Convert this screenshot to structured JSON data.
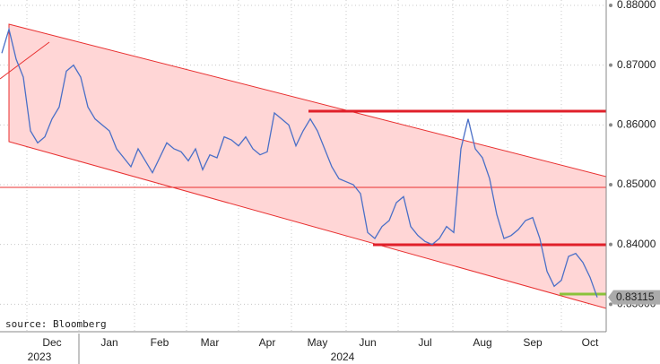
{
  "chart_data": {
    "type": "line",
    "source": "source: Bloomberg",
    "years": [
      "2023",
      "2024"
    ],
    "color": "#4a6fc7",
    "categories": [
      null,
      null,
      null,
      null,
      null,
      null,
      null,
      "Dec",
      null,
      null,
      null,
      null,
      null,
      null,
      null,
      "Jan",
      null,
      null,
      null,
      null,
      null,
      null,
      "Feb",
      null,
      null,
      null,
      null,
      null,
      null,
      "Mar",
      null,
      null,
      null,
      null,
      null,
      null,
      null,
      "Apr",
      null,
      null,
      null,
      null,
      null,
      null,
      "May",
      null,
      null,
      null,
      null,
      null,
      null,
      "Jun",
      null,
      null,
      null,
      null,
      null,
      null,
      null,
      "Jul",
      null,
      null,
      null,
      null,
      null,
      null,
      null,
      "Aug",
      null,
      null,
      null,
      null,
      null,
      null,
      "Sep",
      null,
      null,
      null,
      null,
      null,
      null,
      null,
      "Oct",
      null
    ],
    "values": [
      0.872,
      0.876,
      0.871,
      0.868,
      0.859,
      0.857,
      0.858,
      0.861,
      0.863,
      0.869,
      0.87,
      0.868,
      0.863,
      0.861,
      0.86,
      0.859,
      0.856,
      0.8545,
      0.853,
      0.856,
      0.854,
      0.852,
      0.8545,
      0.857,
      0.856,
      0.8555,
      0.854,
      0.856,
      0.8525,
      0.855,
      0.8545,
      0.858,
      0.8575,
      0.8565,
      0.858,
      0.856,
      0.855,
      0.8555,
      0.862,
      0.861,
      0.86,
      0.8565,
      0.859,
      0.861,
      0.859,
      0.856,
      0.853,
      0.851,
      0.8505,
      0.85,
      0.8485,
      0.842,
      0.841,
      0.843,
      0.844,
      0.847,
      0.848,
      0.843,
      0.8415,
      0.8405,
      0.84,
      0.841,
      0.843,
      0.842,
      0.856,
      0.861,
      0.856,
      0.8545,
      0.851,
      0.845,
      0.841,
      0.8415,
      0.8425,
      0.844,
      0.8445,
      0.841,
      0.8355,
      0.833,
      0.834,
      0.838,
      0.8385,
      0.837,
      0.8345,
      0.83115
    ],
    "ylim": [
      0.8254,
      0.8809
    ],
    "yticks": [
      {
        "value": 0.83,
        "label": "0.83000"
      },
      {
        "value": 0.84,
        "label": "0.84000"
      },
      {
        "value": 0.85,
        "label": "0.85000"
      },
      {
        "value": 0.86,
        "label": "0.86000"
      },
      {
        "value": 0.87,
        "label": "0.87000"
      },
      {
        "value": 0.88,
        "label": "0.88000"
      }
    ],
    "grid": true
  }
}
